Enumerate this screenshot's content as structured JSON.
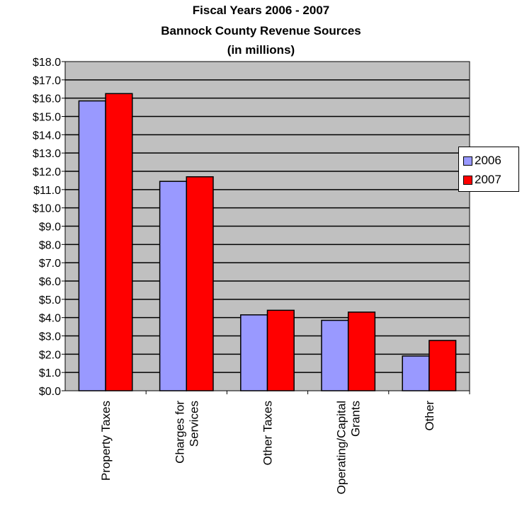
{
  "chart_data": {
    "type": "bar",
    "title_lines": [
      "Fiscal Years 2006 - 2007",
      "Bannock County Revenue Sources",
      "(in millions)"
    ],
    "categories": [
      "Property Taxes",
      "Charges for Services",
      "Other Taxes",
      "Operating/Capital Grants",
      "Other"
    ],
    "category_label_lines": [
      [
        "Property Taxes"
      ],
      [
        "Charges for",
        "Services"
      ],
      [
        "Other Taxes"
      ],
      [
        "Operating/Capital",
        "Grants"
      ],
      [
        "Other"
      ]
    ],
    "series": [
      {
        "name": "2006",
        "color": "#9999ff",
        "values": [
          15.85,
          11.45,
          4.15,
          3.85,
          1.9
        ]
      },
      {
        "name": "2007",
        "color": "#ff0000",
        "values": [
          16.25,
          11.7,
          4.4,
          4.3,
          2.75
        ]
      }
    ],
    "ylim": [
      0,
      18
    ],
    "ytick_step": 1,
    "ytick_format": "$N.1",
    "plot_background": "#c0c0c0",
    "grid": true,
    "legend_position": "right"
  }
}
